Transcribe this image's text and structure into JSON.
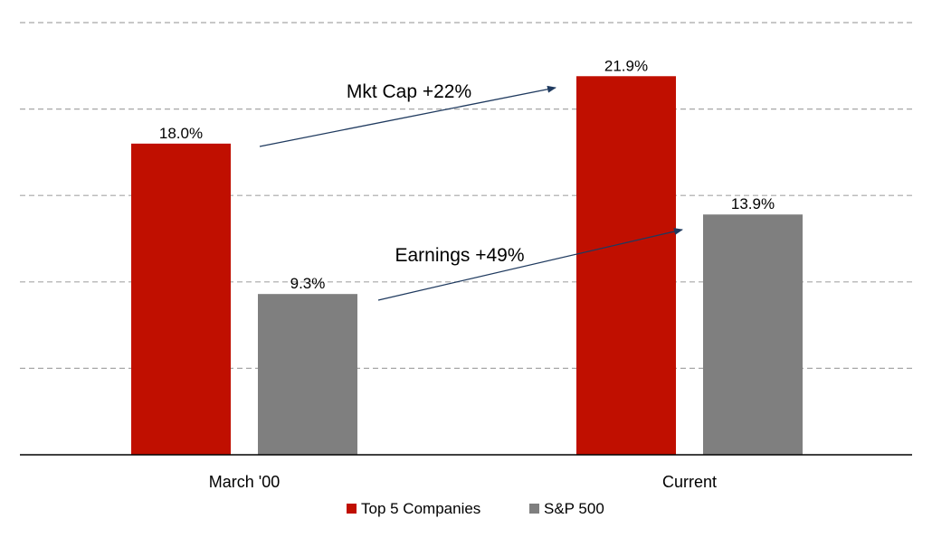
{
  "chart_data": {
    "type": "bar",
    "categories": [
      "March '00",
      "Current"
    ],
    "series": [
      {
        "name": "Top 5 Companies",
        "values": [
          18.0,
          21.9
        ],
        "value_labels": [
          "18.0%",
          "21.9%"
        ],
        "color": "#c00f00"
      },
      {
        "name": "S&P 500",
        "values": [
          9.3,
          13.9
        ],
        "value_labels": [
          "9.3%",
          "13.9%"
        ],
        "color": "#7f7f7f"
      }
    ],
    "ylim": [
      0,
      25
    ],
    "gridlines": [
      5,
      10,
      15,
      20,
      25
    ],
    "grid": true,
    "legend_position": "bottom-center",
    "annotations": [
      {
        "text": "Mkt Cap +22%",
        "from_series": 0,
        "from_category": 0,
        "to_series": 0,
        "to_category": 1
      },
      {
        "text": "Earnings +49%",
        "from_series": 1,
        "from_category": 0,
        "to_series": 1,
        "to_category": 1
      }
    ]
  }
}
